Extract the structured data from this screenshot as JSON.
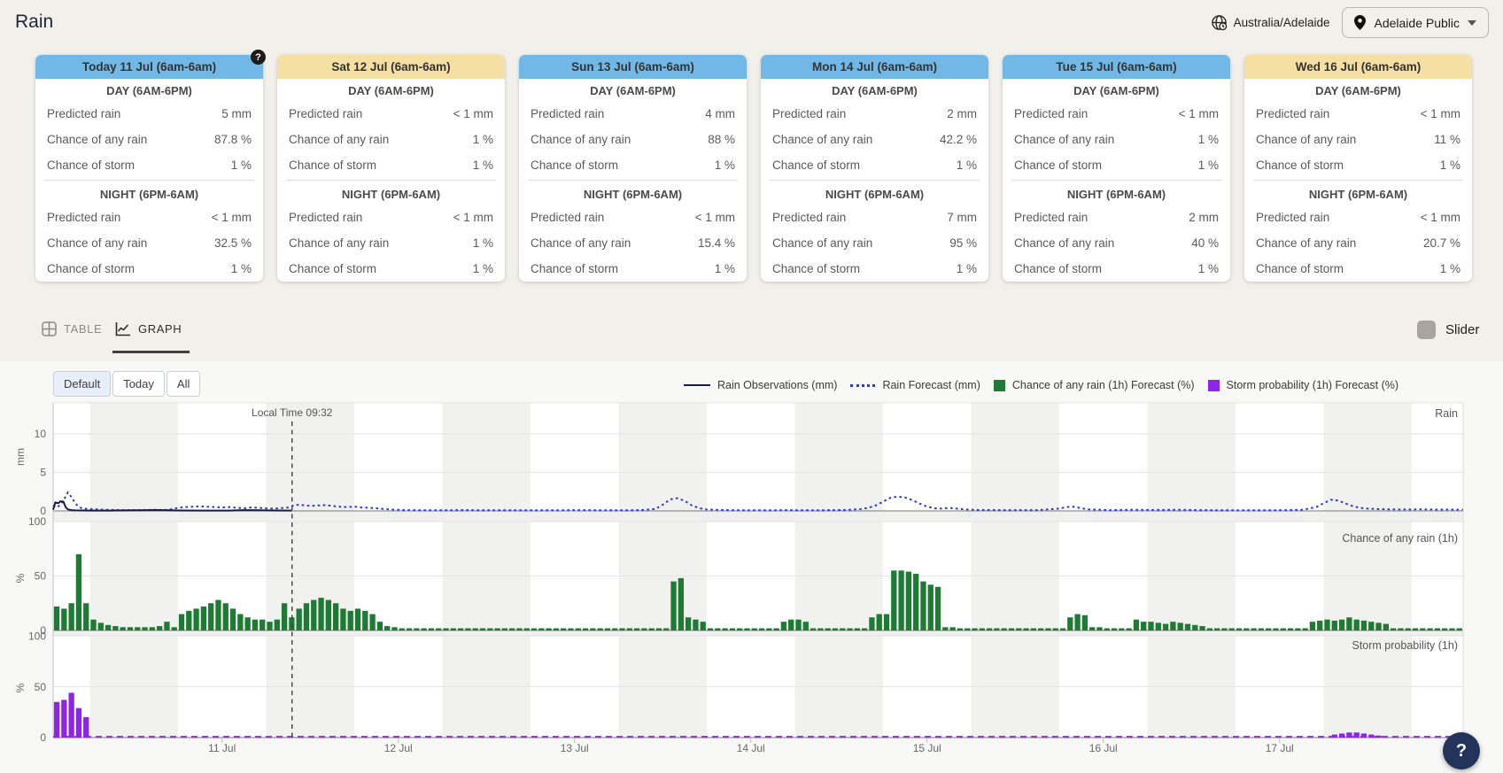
{
  "header": {
    "title": "Rain",
    "timezone": "Australia/Adelaide",
    "location_selector": "Adelaide Public"
  },
  "cards": {
    "row_labels": {
      "day": "DAY (6AM-6PM)",
      "night": "NIGHT (6PM-6AM)",
      "rain": "Predicted rain",
      "any": "Chance of any rain",
      "storm": "Chance of storm"
    },
    "items": [
      {
        "title": "Today 11 Jul (6am-6am)",
        "color": "blue",
        "help_icon": true,
        "day": {
          "rain": "5 mm",
          "any": "87.8 %",
          "storm": "1 %"
        },
        "night": {
          "rain": "< 1 mm",
          "any": "32.5 %",
          "storm": "1 %"
        }
      },
      {
        "title": "Sat 12 Jul (6am-6am)",
        "color": "yellow",
        "help_icon": false,
        "day": {
          "rain": "< 1 mm",
          "any": "1 %",
          "storm": "1 %"
        },
        "night": {
          "rain": "< 1 mm",
          "any": "1 %",
          "storm": "1 %"
        }
      },
      {
        "title": "Sun 13 Jul (6am-6am)",
        "color": "blue",
        "help_icon": false,
        "day": {
          "rain": "4 mm",
          "any": "88 %",
          "storm": "1 %"
        },
        "night": {
          "rain": "< 1 mm",
          "any": "15.4 %",
          "storm": "1 %"
        }
      },
      {
        "title": "Mon 14 Jul (6am-6am)",
        "color": "blue",
        "help_icon": false,
        "day": {
          "rain": "2 mm",
          "any": "42.2 %",
          "storm": "1 %"
        },
        "night": {
          "rain": "7 mm",
          "any": "95 %",
          "storm": "1 %"
        }
      },
      {
        "title": "Tue 15 Jul (6am-6am)",
        "color": "blue",
        "help_icon": false,
        "day": {
          "rain": "< 1 mm",
          "any": "1 %",
          "storm": "1 %"
        },
        "night": {
          "rain": "2 mm",
          "any": "40 %",
          "storm": "1 %"
        }
      },
      {
        "title": "Wed 16 Jul (6am-6am)",
        "color": "yellow",
        "help_icon": false,
        "day": {
          "rain": "< 1 mm",
          "any": "11 %",
          "storm": "1 %"
        },
        "night": {
          "rain": "< 1 mm",
          "any": "20.7 %",
          "storm": "1 %"
        }
      }
    ]
  },
  "view_tabs": {
    "table": "TABLE",
    "graph": "GRAPH",
    "active": "GRAPH",
    "slider_label": "Slider"
  },
  "floating_help": "?",
  "chart_data": {
    "type": "mixed",
    "range_buttons": [
      "Default",
      "Today",
      "All"
    ],
    "active_range": "Default",
    "legend": [
      {
        "label": "Rain Observations (mm)",
        "style": "solid-line",
        "color": "#171e40"
      },
      {
        "label": "Rain Forecast (mm)",
        "style": "dotted-line",
        "color": "#2c39cf"
      },
      {
        "label": "Chance of any rain (1h) Forecast (%)",
        "style": "square",
        "color": "#1e7b34"
      },
      {
        "label": "Storm probability (1h) Forecast (%)",
        "style": "square",
        "color": "#8e24e8"
      }
    ],
    "local_time_marker": {
      "label": "Local Time 09:32",
      "hour": 32.53
    },
    "x_start": "10 Jul 01:00 (hour 0)",
    "hours": 192,
    "x_tick_labels": [
      "11 Jul",
      "12 Jul",
      "13 Jul",
      "14 Jul",
      "15 Jul",
      "16 Jul",
      "17 Jul"
    ],
    "day_band_note": "grey vertical bands = 6am-6pm each day",
    "subcharts": [
      {
        "title": "Rain",
        "unit": "mm",
        "ylim": [
          0,
          14
        ],
        "yticks": [
          0,
          5,
          10
        ],
        "grid": true,
        "series": [
          {
            "name": "Rain Observations (mm)",
            "type": "line",
            "color": "#171e40",
            "points": [
              [
                0,
                0.15
              ],
              [
                0.3,
                1.1
              ],
              [
                0.7,
                1.0
              ],
              [
                1.0,
                1.25
              ],
              [
                1.4,
                1.2
              ],
              [
                1.7,
                0.5
              ],
              [
                2.0,
                0.2
              ],
              [
                2.5,
                0.1
              ],
              [
                3,
                0.07
              ],
              [
                5,
                0.05
              ],
              [
                8,
                0.05
              ],
              [
                12,
                0.08
              ],
              [
                14,
                0.12
              ],
              [
                15,
                0.1
              ],
              [
                17,
                0.06
              ],
              [
                20,
                0.05
              ],
              [
                24,
                0.05
              ],
              [
                26,
                0.1
              ],
              [
                28,
                0.08
              ],
              [
                30,
                0.06
              ],
              [
                32.5,
                0.05
              ]
            ]
          },
          {
            "name": "Rain Forecast (mm)",
            "type": "dotted-line",
            "color": "#2c39cf",
            "points": [
              [
                0,
                0.7
              ],
              [
                0.5,
                0.45
              ],
              [
                1,
                0.8
              ],
              [
                1.5,
                1.5
              ],
              [
                2,
                2.4
              ],
              [
                2.5,
                1.8
              ],
              [
                3,
                1.0
              ],
              [
                3.5,
                0.5
              ],
              [
                4,
                0.3
              ],
              [
                5,
                0.25
              ],
              [
                6,
                0.2
              ],
              [
                7,
                0.15
              ],
              [
                9,
                0.1
              ],
              [
                12,
                0.1
              ],
              [
                14,
                0.15
              ],
              [
                15,
                0.1
              ],
              [
                16,
                0.2
              ],
              [
                17,
                0.4
              ],
              [
                18,
                0.5
              ],
              [
                19,
                0.55
              ],
              [
                20,
                0.6
              ],
              [
                21,
                0.55
              ],
              [
                22,
                0.5
              ],
              [
                23,
                0.45
              ],
              [
                24,
                0.5
              ],
              [
                25,
                0.4
              ],
              [
                26,
                0.35
              ],
              [
                27,
                0.45
              ],
              [
                28,
                0.4
              ],
              [
                29,
                0.33
              ],
              [
                30,
                0.3
              ],
              [
                31,
                0.35
              ],
              [
                32,
                0.45
              ],
              [
                33,
                0.8
              ],
              [
                34,
                0.75
              ],
              [
                35,
                0.65
              ],
              [
                36,
                0.7
              ],
              [
                37,
                0.75
              ],
              [
                38,
                0.65
              ],
              [
                39,
                0.55
              ],
              [
                40,
                0.5
              ],
              [
                41,
                0.55
              ],
              [
                42,
                0.45
              ],
              [
                43,
                0.4
              ],
              [
                44,
                0.35
              ],
              [
                45,
                0.25
              ],
              [
                46,
                0.18
              ],
              [
                48,
                0.1
              ],
              [
                52,
                0.08
              ],
              [
                56,
                0.1
              ],
              [
                60,
                0.08
              ],
              [
                66,
                0.08
              ],
              [
                72,
                0.1
              ],
              [
                76,
                0.08
              ],
              [
                80,
                0.1
              ],
              [
                82,
                0.25
              ],
              [
                83,
                0.8
              ],
              [
                84,
                1.5
              ],
              [
                85,
                1.65
              ],
              [
                86,
                1.3
              ],
              [
                87,
                0.7
              ],
              [
                88,
                0.35
              ],
              [
                89,
                0.18
              ],
              [
                92,
                0.1
              ],
              [
                96,
                0.08
              ],
              [
                100,
                0.1
              ],
              [
                104,
                0.08
              ],
              [
                108,
                0.12
              ],
              [
                110,
                0.25
              ],
              [
                111,
                0.4
              ],
              [
                112,
                0.7
              ],
              [
                113,
                1.2
              ],
              [
                114,
                1.7
              ],
              [
                115,
                1.85
              ],
              [
                116,
                1.75
              ],
              [
                117,
                1.4
              ],
              [
                118,
                0.95
              ],
              [
                119,
                0.55
              ],
              [
                120,
                0.35
              ],
              [
                121,
                0.3
              ],
              [
                122,
                0.4
              ],
              [
                123,
                0.3
              ],
              [
                124,
                0.2
              ],
              [
                126,
                0.12
              ],
              [
                130,
                0.1
              ],
              [
                134,
                0.1
              ],
              [
                137,
                0.3
              ],
              [
                138,
                0.5
              ],
              [
                139,
                0.55
              ],
              [
                140,
                0.35
              ],
              [
                141,
                0.2
              ],
              [
                144,
                0.1
              ],
              [
                147,
                0.15
              ],
              [
                150,
                0.12
              ],
              [
                153,
                0.15
              ],
              [
                156,
                0.1
              ],
              [
                160,
                0.08
              ],
              [
                164,
                0.08
              ],
              [
                168,
                0.1
              ],
              [
                170,
                0.15
              ],
              [
                171,
                0.3
              ],
              [
                172,
                0.5
              ],
              [
                173,
                1.0
              ],
              [
                174,
                1.45
              ],
              [
                175,
                1.35
              ],
              [
                176,
                0.95
              ],
              [
                177,
                0.6
              ],
              [
                178,
                0.4
              ],
              [
                179,
                0.3
              ],
              [
                180,
                0.25
              ],
              [
                182,
                0.2
              ],
              [
                184,
                0.18
              ],
              [
                186,
                0.2
              ],
              [
                188,
                0.18
              ],
              [
                190,
                0.17
              ],
              [
                192,
                0.16
              ]
            ]
          }
        ]
      },
      {
        "title": "Chance of any rain (1h)",
        "unit": "%",
        "ylim": [
          0,
          100
        ],
        "yticks": [
          0,
          50,
          100
        ],
        "grid": true,
        "series": [
          {
            "name": "Chance of any rain (1h) Forecast (%)",
            "type": "bar",
            "color": "#1e7b34",
            "hourly_values": [
              22,
              20,
              25,
              70,
              25,
              10,
              7,
              5,
              4,
              3,
              3,
              3,
              3,
              3,
              4,
              8,
              3,
              15,
              18,
              20,
              22,
              25,
              28,
              25,
              20,
              15,
              12,
              10,
              10,
              8,
              10,
              25,
              12,
              20,
              25,
              28,
              30,
              28,
              25,
              20,
              18,
              20,
              18,
              15,
              8,
              4,
              3,
              2,
              2,
              2,
              2,
              2,
              2,
              2,
              2,
              2,
              2,
              2,
              2,
              2,
              2,
              2,
              2,
              2,
              2,
              2,
              2,
              2,
              2,
              2,
              2,
              2,
              2,
              2,
              2,
              2,
              2,
              2,
              2,
              2,
              2,
              2,
              2,
              2,
              45,
              48,
              12,
              10,
              8,
              2,
              2,
              2,
              2,
              2,
              2,
              2,
              2,
              2,
              2,
              8,
              10,
              10,
              8,
              2,
              2,
              2,
              2,
              2,
              2,
              2,
              2,
              12,
              15,
              15,
              55,
              55,
              54,
              52,
              45,
              42,
              40,
              3,
              3,
              2,
              2,
              2,
              2,
              2,
              2,
              2,
              2,
              2,
              2,
              2,
              2,
              2,
              2,
              2,
              12,
              15,
              14,
              3,
              3,
              2,
              2,
              2,
              2,
              10,
              8,
              8,
              7,
              6,
              8,
              7,
              6,
              5,
              4,
              2,
              2,
              2,
              2,
              2,
              2,
              2,
              2,
              2,
              2,
              2,
              2,
              2,
              2,
              8,
              9,
              10,
              9,
              10,
              12,
              10,
              9,
              8,
              7,
              6,
              2,
              2,
              2,
              2,
              2,
              2,
              2,
              2,
              2,
              2
            ]
          }
        ]
      },
      {
        "title": "Storm probability (1h)",
        "unit": "%",
        "ylim": [
          0,
          100
        ],
        "yticks": [
          0,
          50,
          100
        ],
        "grid": true,
        "series": [
          {
            "name": "Storm probability (1h) Forecast (%)",
            "type": "bar",
            "color": "#8e24e8",
            "baseline": "dashed",
            "points": [
              [
                0,
                35
              ],
              [
                1,
                37
              ],
              [
                2,
                44
              ],
              [
                3,
                29
              ],
              [
                4,
                20
              ],
              [
                174,
                3
              ],
              [
                175,
                4
              ],
              [
                176,
                5
              ],
              [
                177,
                5
              ],
              [
                178,
                4
              ],
              [
                179,
                3
              ],
              [
                180,
                2
              ]
            ]
          }
        ]
      }
    ]
  }
}
